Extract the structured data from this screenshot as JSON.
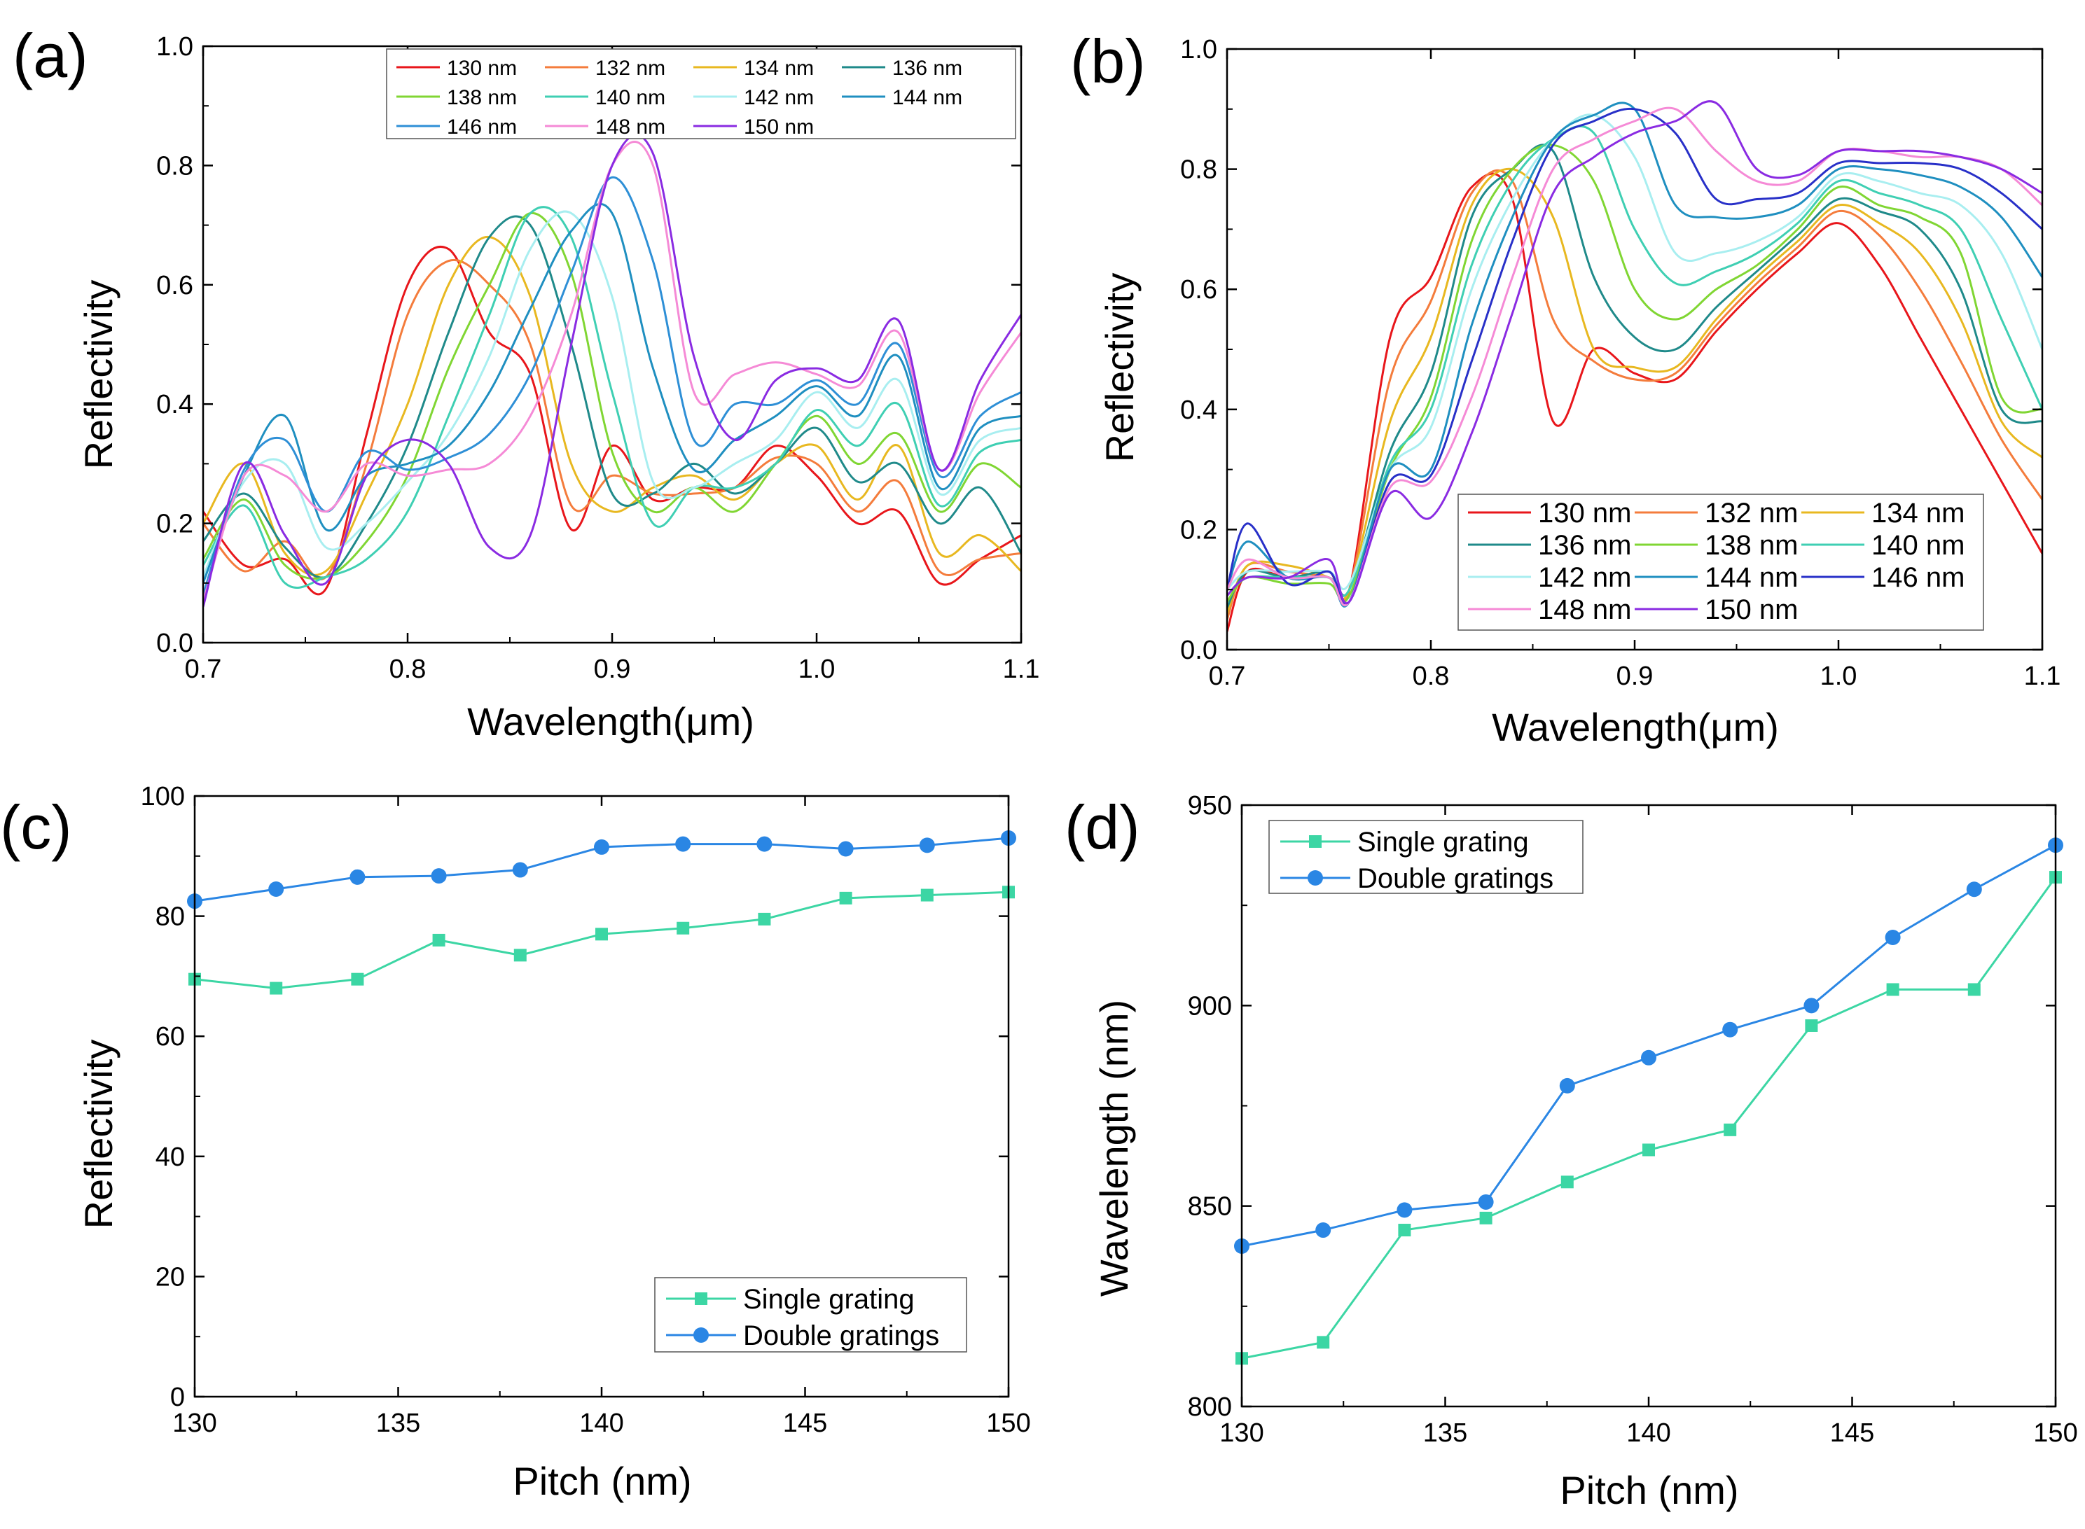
{
  "chart_data": [
    {
      "id": "a",
      "panel_label": "(a)",
      "type": "line",
      "xlabel": "Wavelength(μm)",
      "ylabel": "Reflectivity",
      "xlim": [
        0.7,
        1.1
      ],
      "ylim": [
        0.0,
        1.0
      ],
      "xticks": [
        0.7,
        0.8,
        0.9,
        1.0,
        1.1
      ],
      "xtick_labels": [
        "0.7",
        "0.8",
        "0.9",
        "1.0",
        "1.1"
      ],
      "yticks": [
        0.0,
        0.2,
        0.4,
        0.6,
        0.8,
        1.0
      ],
      "ytick_labels": [
        "0.0",
        "0.2",
        "0.4",
        "0.6",
        "0.8",
        "1.0"
      ],
      "legend_position": "top-right",
      "x": [
        0.7,
        0.72,
        0.74,
        0.76,
        0.78,
        0.8,
        0.82,
        0.84,
        0.86,
        0.88,
        0.9,
        0.92,
        0.94,
        0.96,
        0.98,
        1.0,
        1.02,
        1.04,
        1.06,
        1.08,
        1.1
      ],
      "series": [
        {
          "name": "130 nm",
          "color": "#e8161b",
          "values": [
            0.22,
            0.13,
            0.14,
            0.09,
            0.35,
            0.6,
            0.66,
            0.52,
            0.45,
            0.19,
            0.33,
            0.24,
            0.26,
            0.26,
            0.33,
            0.28,
            0.2,
            0.22,
            0.1,
            0.14,
            0.18
          ]
        },
        {
          "name": "132 nm",
          "color": "#f47c3c",
          "values": [
            0.2,
            0.12,
            0.17,
            0.11,
            0.3,
            0.55,
            0.64,
            0.6,
            0.5,
            0.23,
            0.28,
            0.25,
            0.25,
            0.26,
            0.31,
            0.3,
            0.22,
            0.27,
            0.12,
            0.14,
            0.15
          ]
        },
        {
          "name": "134 nm",
          "color": "#e8b820",
          "values": [
            0.2,
            0.3,
            0.15,
            0.12,
            0.25,
            0.4,
            0.6,
            0.68,
            0.58,
            0.3,
            0.22,
            0.26,
            0.28,
            0.24,
            0.3,
            0.33,
            0.24,
            0.33,
            0.15,
            0.18,
            0.12
          ]
        },
        {
          "name": "136 nm",
          "color": "#1f8a8a",
          "values": [
            0.17,
            0.25,
            0.16,
            0.11,
            0.2,
            0.33,
            0.52,
            0.68,
            0.7,
            0.5,
            0.25,
            0.25,
            0.3,
            0.25,
            0.3,
            0.36,
            0.27,
            0.3,
            0.2,
            0.26,
            0.15
          ]
        },
        {
          "name": "138 nm",
          "color": "#80d633",
          "values": [
            0.14,
            0.24,
            0.13,
            0.11,
            0.17,
            0.28,
            0.46,
            0.6,
            0.72,
            0.62,
            0.32,
            0.22,
            0.26,
            0.22,
            0.3,
            0.38,
            0.3,
            0.35,
            0.22,
            0.3,
            0.26
          ]
        },
        {
          "name": "140 nm",
          "color": "#3fcfb3",
          "values": [
            0.13,
            0.23,
            0.1,
            0.11,
            0.14,
            0.22,
            0.38,
            0.55,
            0.72,
            0.68,
            0.42,
            0.2,
            0.26,
            0.26,
            0.3,
            0.39,
            0.33,
            0.4,
            0.23,
            0.32,
            0.34
          ]
        },
        {
          "name": "142 nm",
          "color": "#a8eef0",
          "values": [
            0.11,
            0.27,
            0.3,
            0.16,
            0.2,
            0.27,
            0.35,
            0.48,
            0.66,
            0.72,
            0.58,
            0.27,
            0.26,
            0.3,
            0.34,
            0.42,
            0.36,
            0.44,
            0.25,
            0.34,
            0.36
          ]
        },
        {
          "name": "144 nm",
          "color": "#1f8fc0",
          "values": [
            0.1,
            0.28,
            0.38,
            0.19,
            0.28,
            0.3,
            0.33,
            0.42,
            0.56,
            0.69,
            0.72,
            0.46,
            0.29,
            0.34,
            0.38,
            0.43,
            0.38,
            0.48,
            0.26,
            0.36,
            0.38
          ]
        },
        {
          "name": "146 nm",
          "color": "#2e8fd6",
          "values": [
            0.08,
            0.29,
            0.34,
            0.22,
            0.32,
            0.29,
            0.31,
            0.35,
            0.45,
            0.62,
            0.78,
            0.64,
            0.34,
            0.4,
            0.4,
            0.44,
            0.4,
            0.5,
            0.28,
            0.38,
            0.42
          ]
        },
        {
          "name": "148 nm",
          "color": "#f58ad6",
          "values": [
            0.07,
            0.28,
            0.28,
            0.22,
            0.3,
            0.28,
            0.29,
            0.3,
            0.38,
            0.55,
            0.8,
            0.8,
            0.42,
            0.45,
            0.47,
            0.45,
            0.43,
            0.52,
            0.29,
            0.42,
            0.52
          ]
        },
        {
          "name": "150 nm",
          "color": "#8a2be2",
          "values": [
            0.06,
            0.3,
            0.18,
            0.1,
            0.28,
            0.34,
            0.3,
            0.16,
            0.18,
            0.5,
            0.8,
            0.82,
            0.48,
            0.34,
            0.44,
            0.46,
            0.44,
            0.54,
            0.29,
            0.44,
            0.55
          ]
        }
      ]
    },
    {
      "id": "b",
      "panel_label": "(b)",
      "type": "line",
      "xlabel": "Wavelength(μm)",
      "ylabel": "Reflectivity",
      "xlim": [
        0.7,
        1.1
      ],
      "ylim": [
        0.0,
        1.0
      ],
      "xticks": [
        0.7,
        0.8,
        0.9,
        1.0,
        1.1
      ],
      "xtick_labels": [
        "0.7",
        "0.8",
        "0.9",
        "1.0",
        "1.1"
      ],
      "yticks": [
        0.0,
        0.2,
        0.4,
        0.6,
        0.8,
        1.0
      ],
      "ytick_labels": [
        "0.0",
        "0.2",
        "0.4",
        "0.6",
        "0.8",
        "1.0"
      ],
      "legend_position": "bottom-right",
      "x": [
        0.7,
        0.71,
        0.73,
        0.75,
        0.76,
        0.78,
        0.8,
        0.82,
        0.84,
        0.86,
        0.88,
        0.9,
        0.92,
        0.94,
        0.96,
        0.98,
        1.0,
        1.02,
        1.04,
        1.06,
        1.08,
        1.1
      ],
      "series": [
        {
          "name": "130 nm",
          "color": "#e8161b",
          "values": [
            0.03,
            0.13,
            0.12,
            0.13,
            0.1,
            0.52,
            0.62,
            0.77,
            0.75,
            0.38,
            0.5,
            0.46,
            0.45,
            0.53,
            0.6,
            0.66,
            0.71,
            0.64,
            0.52,
            0.4,
            0.28,
            0.16
          ]
        },
        {
          "name": "132 nm",
          "color": "#f47c3c",
          "values": [
            0.05,
            0.14,
            0.13,
            0.12,
            0.1,
            0.45,
            0.58,
            0.76,
            0.78,
            0.55,
            0.48,
            0.45,
            0.46,
            0.54,
            0.61,
            0.67,
            0.73,
            0.69,
            0.6,
            0.48,
            0.35,
            0.25
          ]
        },
        {
          "name": "134 nm",
          "color": "#e8b820",
          "values": [
            0.06,
            0.14,
            0.14,
            0.12,
            0.1,
            0.38,
            0.52,
            0.74,
            0.8,
            0.72,
            0.5,
            0.47,
            0.47,
            0.55,
            0.62,
            0.68,
            0.74,
            0.71,
            0.66,
            0.55,
            0.38,
            0.32
          ]
        },
        {
          "name": "136 nm",
          "color": "#1f8a8a",
          "values": [
            0.07,
            0.13,
            0.12,
            0.13,
            0.1,
            0.33,
            0.46,
            0.72,
            0.8,
            0.83,
            0.62,
            0.52,
            0.5,
            0.57,
            0.63,
            0.69,
            0.75,
            0.73,
            0.7,
            0.6,
            0.4,
            0.38
          ]
        },
        {
          "name": "138 nm",
          "color": "#80d633",
          "values": [
            0.08,
            0.12,
            0.11,
            0.11,
            0.09,
            0.3,
            0.42,
            0.68,
            0.8,
            0.84,
            0.78,
            0.6,
            0.55,
            0.6,
            0.64,
            0.7,
            0.77,
            0.74,
            0.72,
            0.66,
            0.42,
            0.4
          ]
        },
        {
          "name": "140 nm",
          "color": "#3fcfb3",
          "values": [
            0.09,
            0.12,
            0.12,
            0.12,
            0.1,
            0.31,
            0.4,
            0.64,
            0.78,
            0.85,
            0.86,
            0.7,
            0.61,
            0.63,
            0.66,
            0.71,
            0.78,
            0.76,
            0.74,
            0.7,
            0.55,
            0.4
          ]
        },
        {
          "name": "142 nm",
          "color": "#a8eef0",
          "values": [
            0.1,
            0.13,
            0.13,
            0.13,
            0.11,
            0.3,
            0.37,
            0.6,
            0.75,
            0.85,
            0.89,
            0.82,
            0.66,
            0.66,
            0.68,
            0.72,
            0.79,
            0.78,
            0.76,
            0.74,
            0.66,
            0.5
          ]
        },
        {
          "name": "144 nm",
          "color": "#1f8fc0",
          "values": [
            0.1,
            0.18,
            0.12,
            0.12,
            0.08,
            0.3,
            0.3,
            0.54,
            0.72,
            0.85,
            0.89,
            0.9,
            0.74,
            0.72,
            0.72,
            0.74,
            0.8,
            0.8,
            0.79,
            0.77,
            0.72,
            0.62
          ]
        },
        {
          "name": "146 nm",
          "color": "#2830c8",
          "values": [
            0.1,
            0.21,
            0.11,
            0.13,
            0.08,
            0.28,
            0.29,
            0.48,
            0.68,
            0.84,
            0.88,
            0.9,
            0.86,
            0.75,
            0.75,
            0.76,
            0.81,
            0.81,
            0.81,
            0.8,
            0.76,
            0.7
          ]
        },
        {
          "name": "148 nm",
          "color": "#f58ad6",
          "values": [
            0.1,
            0.15,
            0.12,
            0.12,
            0.08,
            0.27,
            0.28,
            0.42,
            0.62,
            0.8,
            0.85,
            0.88,
            0.9,
            0.83,
            0.78,
            0.78,
            0.83,
            0.83,
            0.82,
            0.82,
            0.8,
            0.74
          ]
        },
        {
          "name": "150 nm",
          "color": "#8a2be2",
          "values": [
            0.09,
            0.12,
            0.12,
            0.15,
            0.08,
            0.26,
            0.22,
            0.36,
            0.56,
            0.76,
            0.82,
            0.86,
            0.88,
            0.91,
            0.8,
            0.79,
            0.83,
            0.83,
            0.83,
            0.82,
            0.8,
            0.76
          ]
        }
      ]
    },
    {
      "id": "c",
      "panel_label": "(c)",
      "type": "line",
      "xlabel": "Pitch (nm)",
      "ylabel": "Reflectivity",
      "xlim": [
        130,
        150
      ],
      "ylim": [
        0,
        100
      ],
      "xticks": [
        130,
        135,
        140,
        145,
        150
      ],
      "xtick_labels": [
        "130",
        "135",
        "140",
        "145",
        "150"
      ],
      "yticks": [
        0,
        20,
        40,
        60,
        80,
        100
      ],
      "ytick_labels": [
        "0",
        "20",
        "40",
        "60",
        "80",
        "100"
      ],
      "legend_position": "bottom-right",
      "x": [
        130,
        132,
        134,
        136,
        138,
        140,
        142,
        144,
        146,
        148,
        150
      ],
      "series": [
        {
          "name": "Single grating",
          "color": "#3cd6a4",
          "marker": "square",
          "values": [
            69.5,
            68.0,
            69.5,
            76.0,
            73.5,
            77.0,
            78.0,
            79.5,
            83.0,
            83.5,
            84.0
          ]
        },
        {
          "name": "Double gratings",
          "color": "#2a86e4",
          "marker": "circle",
          "values": [
            82.5,
            84.5,
            86.5,
            86.7,
            87.7,
            91.5,
            92.0,
            92.0,
            91.2,
            91.8,
            93.0
          ]
        }
      ]
    },
    {
      "id": "d",
      "panel_label": "(d)",
      "type": "line",
      "xlabel": "Pitch (nm)",
      "ylabel": "Wavelength (nm)",
      "xlim": [
        130,
        150
      ],
      "ylim": [
        800,
        950
      ],
      "xticks": [
        130,
        135,
        140,
        145,
        150
      ],
      "xtick_labels": [
        "130",
        "135",
        "140",
        "145",
        "150"
      ],
      "yticks": [
        800,
        850,
        900,
        950
      ],
      "ytick_labels": [
        "800",
        "850",
        "900",
        "950"
      ],
      "legend_position": "top-left",
      "x": [
        130,
        132,
        134,
        136,
        138,
        140,
        142,
        144,
        146,
        148,
        150
      ],
      "series": [
        {
          "name": "Single grating",
          "color": "#3cd6a4",
          "marker": "square",
          "values": [
            812,
            816,
            844,
            847,
            856,
            864,
            869,
            895,
            904,
            904,
            932
          ]
        },
        {
          "name": "Double gratings",
          "color": "#2a86e4",
          "marker": "circle",
          "values": [
            840,
            844,
            849,
            851,
            880,
            887,
            894,
            900,
            917,
            929,
            940
          ]
        }
      ]
    }
  ]
}
